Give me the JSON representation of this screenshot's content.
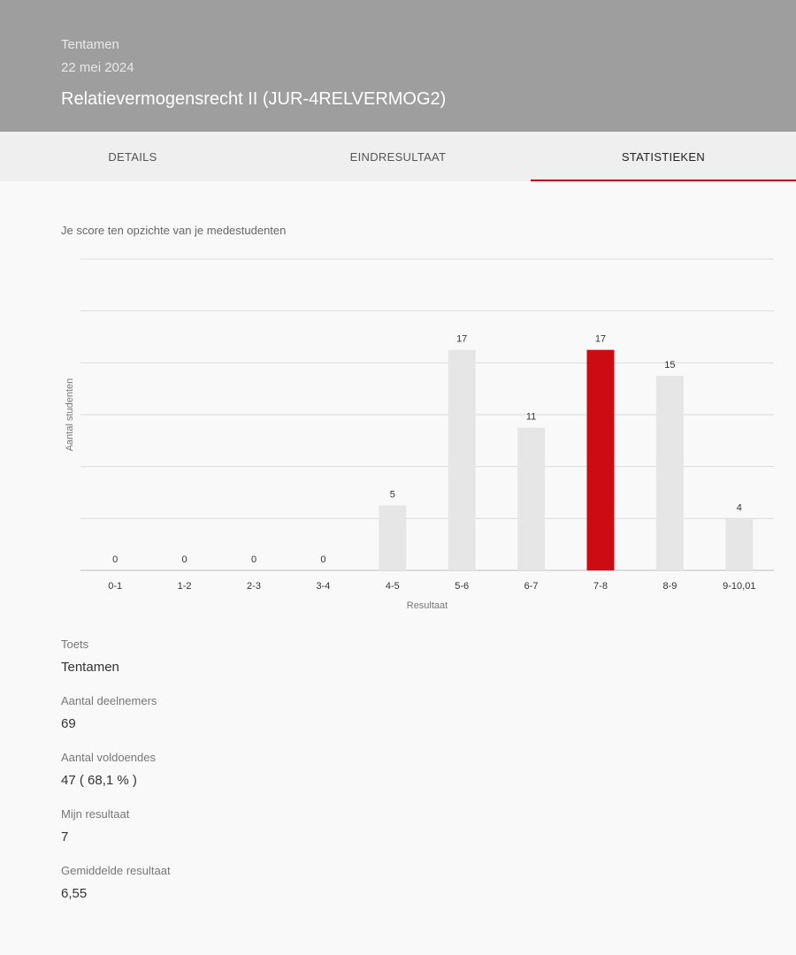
{
  "header": {
    "kicker": "Tentamen",
    "date": "22 mei 2024",
    "title": "Relatievermogensrecht II (JUR-4RELVERMOG2)"
  },
  "tabs": [
    {
      "label": "DETAILS",
      "active": false
    },
    {
      "label": "EINDRESULTAAT",
      "active": false
    },
    {
      "label": "STATISTIEKEN",
      "active": true
    }
  ],
  "chart_caption": "Je score ten opzichte van je medestudenten",
  "chart_data": {
    "type": "bar",
    "xlabel": "Resultaat",
    "ylabel": "Aantal studenten",
    "categories": [
      "0-1",
      "1-2",
      "2-3",
      "3-4",
      "4-5",
      "5-6",
      "6-7",
      "7-8",
      "8-9",
      "9-10,01"
    ],
    "values": [
      0,
      0,
      0,
      0,
      5,
      17,
      11,
      17,
      15,
      4
    ],
    "highlight_category": "7-8",
    "ylim": [
      0,
      24
    ],
    "grid": true,
    "colors": {
      "bar": "#e6e6e6",
      "highlight": "#cc0b12",
      "grid": "#dcdcdc"
    }
  },
  "stats": [
    {
      "label": "Toets",
      "value": "Tentamen"
    },
    {
      "label": "Aantal deelnemers",
      "value": "69"
    },
    {
      "label": "Aantal voldoendes",
      "value": "47 ( 68,1 % )"
    },
    {
      "label": "Mijn resultaat",
      "value": "7"
    },
    {
      "label": "Gemiddelde resultaat",
      "value": "6,55"
    }
  ]
}
